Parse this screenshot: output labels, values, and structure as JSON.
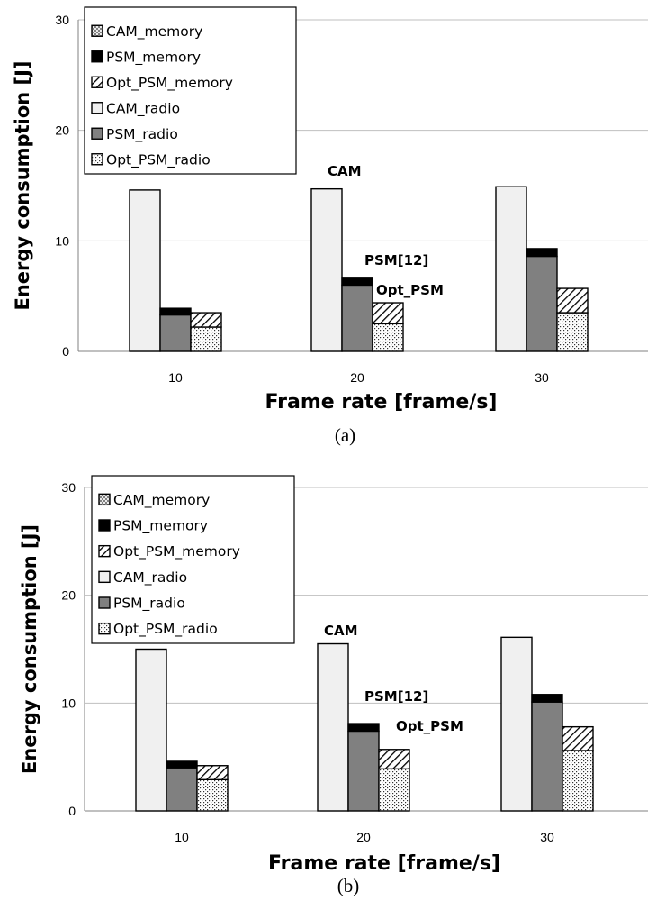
{
  "chart_data": [
    {
      "type": "bar",
      "caption": "(a)",
      "xlabel": "Frame rate [frame/s]",
      "ylabel": "Energy consumption [J]",
      "ylim": [
        0,
        30
      ],
      "yticks": [
        "0",
        "10",
        "20",
        "30"
      ],
      "categories": [
        "10",
        "20",
        "30"
      ],
      "grid": true,
      "legend_position": "top-left",
      "stacked_groups": [
        "CAM",
        "PSM[12]",
        "Opt_PSM"
      ],
      "series": [
        {
          "name": "CAM_memory",
          "values": [
            0,
            0,
            0
          ]
        },
        {
          "name": "PSM_memory",
          "values": [
            0.6,
            0.7,
            0.7
          ]
        },
        {
          "name": "Opt_PSM_memory",
          "values": [
            1.3,
            1.9,
            2.2
          ]
        },
        {
          "name": "CAM_radio",
          "values": [
            14.6,
            14.7,
            14.9
          ]
        },
        {
          "name": "PSM_radio",
          "values": [
            3.3,
            6.0,
            8.6
          ]
        },
        {
          "name": "Opt_PSM_radio",
          "values": [
            2.2,
            2.5,
            3.5
          ]
        }
      ],
      "annotations": [
        "CAM",
        "PSM[12]",
        "Opt_PSM"
      ]
    },
    {
      "type": "bar",
      "caption": "(b)",
      "xlabel": "Frame rate [frame/s]",
      "ylabel": "Energy consumption [J]",
      "ylim": [
        0,
        30
      ],
      "yticks": [
        "0",
        "10",
        "20",
        "30"
      ],
      "categories": [
        "10",
        "20",
        "30"
      ],
      "grid": true,
      "legend_position": "top-left",
      "stacked_groups": [
        "CAM",
        "PSM[12]",
        "Opt_PSM"
      ],
      "series": [
        {
          "name": "CAM_memory",
          "values": [
            0,
            0,
            0
          ]
        },
        {
          "name": "PSM_memory",
          "values": [
            0.6,
            0.7,
            0.7
          ]
        },
        {
          "name": "Opt_PSM_memory",
          "values": [
            1.3,
            1.8,
            2.2
          ]
        },
        {
          "name": "CAM_radio",
          "values": [
            15.0,
            15.5,
            16.1
          ]
        },
        {
          "name": "PSM_radio",
          "values": [
            4.0,
            7.4,
            10.1
          ]
        },
        {
          "name": "Opt_PSM_radio",
          "values": [
            2.9,
            3.9,
            5.6
          ]
        }
      ],
      "annotations": [
        "CAM",
        "PSM[12]",
        "Opt_PSM"
      ]
    }
  ],
  "colors": {
    "cam_fill": "#f0f0f0",
    "psm_radio_fill": "#808080",
    "psm_memory_fill": "#000000",
    "gridline": "#bfbfbf",
    "axis": "#808080",
    "bar_stroke": "#000000"
  }
}
